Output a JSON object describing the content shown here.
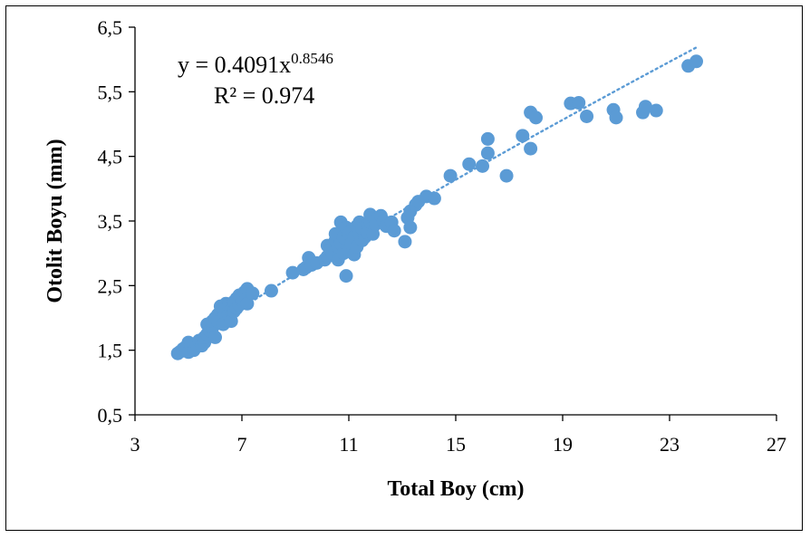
{
  "chart_data": {
    "type": "scatter",
    "xlabel": "Total Boy (cm)",
    "ylabel": "Otolit Boyu (mm)",
    "xlim": [
      3,
      27
    ],
    "ylim": [
      0.5,
      6.5
    ],
    "x_ticks": [
      3,
      7,
      11,
      15,
      19,
      23,
      27
    ],
    "y_ticks": [
      0.5,
      1.5,
      2.5,
      3.5,
      4.5,
      5.5,
      6.5
    ],
    "x_tick_labels": [
      "3",
      "7",
      "11",
      "15",
      "19",
      "23",
      "27"
    ],
    "y_tick_labels": [
      "0,5",
      "1,5",
      "2,5",
      "3,5",
      "4,5",
      "5,5",
      "6,5"
    ],
    "grid": false,
    "legend": "none",
    "marker_color": "#5b9bd5",
    "trendline": {
      "type": "power",
      "a": 0.4091,
      "b": 0.8546,
      "x_range": [
        4.6,
        24
      ],
      "style": "dotted",
      "equation_prefix": "y = 0.4091x",
      "equation_exponent": "0.8546",
      "r2_label": "R² = 0.974"
    },
    "points": [
      [
        4.6,
        1.45
      ],
      [
        4.7,
        1.48
      ],
      [
        4.8,
        1.52
      ],
      [
        4.9,
        1.55
      ],
      [
        5.0,
        1.62
      ],
      [
        5.0,
        1.47
      ],
      [
        5.1,
        1.58
      ],
      [
        5.2,
        1.5
      ],
      [
        5.3,
        1.6
      ],
      [
        5.4,
        1.65
      ],
      [
        5.5,
        1.57
      ],
      [
        5.6,
        1.62
      ],
      [
        5.6,
        1.7
      ],
      [
        5.7,
        1.75
      ],
      [
        5.7,
        1.9
      ],
      [
        5.8,
        1.8
      ],
      [
        5.9,
        1.85
      ],
      [
        5.9,
        1.95
      ],
      [
        6.0,
        1.7
      ],
      [
        6.0,
        2.0
      ],
      [
        6.1,
        1.95
      ],
      [
        6.1,
        2.05
      ],
      [
        6.2,
        2.1
      ],
      [
        6.2,
        2.18
      ],
      [
        6.3,
        2.0
      ],
      [
        6.3,
        1.9
      ],
      [
        6.4,
        2.15
      ],
      [
        6.4,
        2.22
      ],
      [
        6.5,
        2.05
      ],
      [
        6.5,
        2.2
      ],
      [
        6.6,
        2.12
      ],
      [
        6.6,
        1.95
      ],
      [
        6.7,
        2.25
      ],
      [
        6.7,
        2.1
      ],
      [
        6.8,
        2.3
      ],
      [
        6.8,
        2.15
      ],
      [
        6.9,
        2.2
      ],
      [
        6.9,
        2.35
      ],
      [
        7.0,
        2.28
      ],
      [
        7.0,
        2.3
      ],
      [
        7.1,
        2.4
      ],
      [
        7.2,
        2.22
      ],
      [
        7.2,
        2.45
      ],
      [
        7.4,
        2.38
      ],
      [
        8.1,
        2.42
      ],
      [
        8.9,
        2.7
      ],
      [
        9.3,
        2.75
      ],
      [
        9.4,
        2.78
      ],
      [
        9.5,
        2.93
      ],
      [
        9.6,
        2.82
      ],
      [
        9.8,
        2.85
      ],
      [
        10.1,
        2.9
      ],
      [
        10.2,
        2.95
      ],
      [
        10.2,
        3.12
      ],
      [
        10.3,
        3.05
      ],
      [
        10.4,
        3.0
      ],
      [
        10.5,
        3.2
      ],
      [
        10.5,
        3.3
      ],
      [
        10.6,
        3.1
      ],
      [
        10.6,
        2.9
      ],
      [
        10.7,
        3.15
      ],
      [
        10.7,
        3.48
      ],
      [
        10.8,
        3.0
      ],
      [
        10.8,
        3.25
      ],
      [
        10.9,
        2.65
      ],
      [
        10.9,
        3.4
      ],
      [
        11.0,
        3.05
      ],
      [
        11.0,
        3.3
      ],
      [
        11.1,
        3.15
      ],
      [
        11.1,
        3.35
      ],
      [
        11.2,
        2.98
      ],
      [
        11.2,
        3.25
      ],
      [
        11.3,
        3.42
      ],
      [
        11.3,
        3.1
      ],
      [
        11.4,
        3.48
      ],
      [
        11.4,
        3.3
      ],
      [
        11.5,
        3.2
      ],
      [
        11.5,
        3.38
      ],
      [
        11.6,
        3.25
      ],
      [
        11.7,
        3.45
      ],
      [
        11.7,
        3.32
      ],
      [
        11.8,
        3.5
      ],
      [
        11.8,
        3.6
      ],
      [
        11.9,
        3.4
      ],
      [
        11.9,
        3.3
      ],
      [
        12.0,
        3.45
      ],
      [
        12.1,
        3.55
      ],
      [
        12.2,
        3.58
      ],
      [
        12.3,
        3.5
      ],
      [
        12.4,
        3.42
      ],
      [
        12.6,
        3.48
      ],
      [
        12.7,
        3.35
      ],
      [
        13.1,
        3.18
      ],
      [
        13.2,
        3.55
      ],
      [
        13.3,
        3.4
      ],
      [
        13.3,
        3.65
      ],
      [
        13.5,
        3.75
      ],
      [
        13.6,
        3.8
      ],
      [
        13.9,
        3.88
      ],
      [
        14.2,
        3.85
      ],
      [
        14.8,
        4.2
      ],
      [
        15.5,
        4.38
      ],
      [
        16.0,
        4.35
      ],
      [
        16.2,
        4.55
      ],
      [
        16.2,
        4.77
      ],
      [
        16.9,
        4.2
      ],
      [
        17.5,
        4.82
      ],
      [
        17.8,
        4.62
      ],
      [
        17.8,
        5.18
      ],
      [
        18.0,
        5.1
      ],
      [
        19.3,
        5.32
      ],
      [
        19.6,
        5.33
      ],
      [
        19.9,
        5.12
      ],
      [
        20.9,
        5.22
      ],
      [
        21.0,
        5.1
      ],
      [
        22.0,
        5.18
      ],
      [
        22.1,
        5.27
      ],
      [
        22.5,
        5.21
      ],
      [
        23.7,
        5.9
      ],
      [
        24.0,
        5.97
      ]
    ]
  }
}
